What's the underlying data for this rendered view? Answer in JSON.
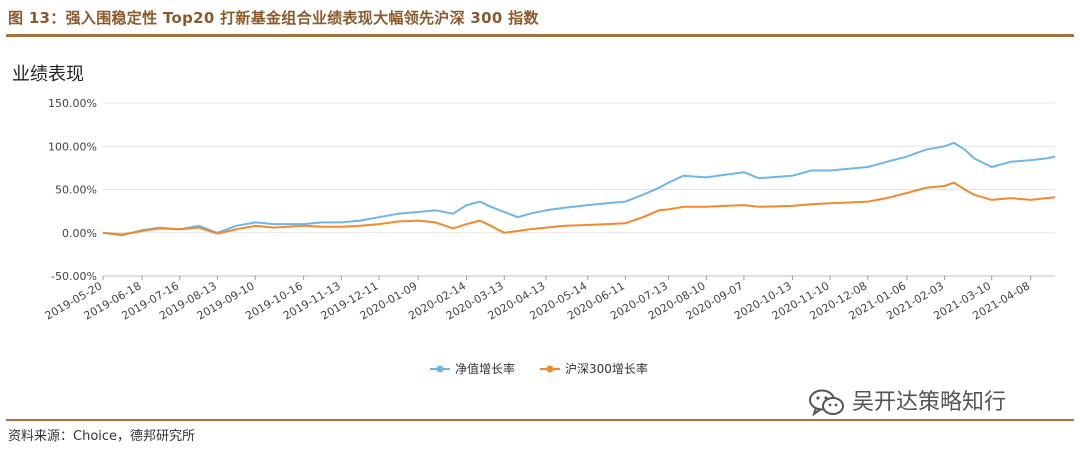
{
  "figure": {
    "title": "图 13：强入围稳定性 Top20 打新基金组合业绩表现大幅领先沪深 300 指数",
    "chart_heading": "业绩表现",
    "source": "资料来源：Choice，德邦研究所",
    "watermark": "吴开达策略知行",
    "watermark_icon": "wechat-icon",
    "rule_color": "#a9733b",
    "title_color": "#8b5a2b"
  },
  "chart_data": {
    "type": "line",
    "title": "业绩表现",
    "xlabel": "",
    "ylabel": "",
    "ylim": [
      -50,
      150
    ],
    "y_ticks": [
      "150.00%",
      "100.00%",
      "50.00%",
      "0.00%",
      "-50.00%"
    ],
    "y_tick_values": [
      150,
      100,
      50,
      0,
      -50
    ],
    "x_start": "2019-05-20",
    "x_end": "2021-04-26",
    "x_ticks": [
      "2019-05-20",
      "2019-06-18",
      "2019-07-16",
      "2019-08-13",
      "2019-09-10",
      "2019-10-16",
      "2019-11-13",
      "2019-12-11",
      "2020-01-09",
      "2020-02-14",
      "2020-03-13",
      "2020-04-13",
      "2020-05-14",
      "2020-06-11",
      "2020-07-13",
      "2020-08-10",
      "2020-09-07",
      "2020-10-13",
      "2020-11-10",
      "2020-12-08",
      "2021-01-06",
      "2021-02-03",
      "2021-03-10",
      "2021-04-08"
    ],
    "grid": true,
    "legend_position": "bottom",
    "series": [
      {
        "name": "净值增长率",
        "color": "#6fb6e6",
        "x": [
          "2019-05-20",
          "2019-06-03",
          "2019-06-18",
          "2019-07-01",
          "2019-07-16",
          "2019-07-30",
          "2019-08-13",
          "2019-08-27",
          "2019-09-10",
          "2019-09-24",
          "2019-10-16",
          "2019-10-30",
          "2019-11-13",
          "2019-11-27",
          "2019-12-11",
          "2019-12-25",
          "2020-01-09",
          "2020-01-22",
          "2020-02-04",
          "2020-02-14",
          "2020-02-24",
          "2020-03-03",
          "2020-03-13",
          "2020-03-23",
          "2020-04-01",
          "2020-04-13",
          "2020-04-27",
          "2020-05-14",
          "2020-05-28",
          "2020-06-11",
          "2020-06-24",
          "2020-07-06",
          "2020-07-13",
          "2020-07-24",
          "2020-08-10",
          "2020-08-24",
          "2020-09-07",
          "2020-09-18",
          "2020-10-13",
          "2020-10-27",
          "2020-11-10",
          "2020-11-24",
          "2020-12-08",
          "2020-12-22",
          "2021-01-06",
          "2021-01-20",
          "2021-02-03",
          "2021-02-10",
          "2021-02-18",
          "2021-02-25",
          "2021-03-10",
          "2021-03-24",
          "2021-04-08",
          "2021-04-20",
          "2021-04-26"
        ],
        "values": [
          0,
          -3,
          3,
          6,
          4,
          8,
          0,
          8,
          12,
          10,
          10,
          12,
          12,
          14,
          18,
          22,
          24,
          26,
          22,
          32,
          36,
          30,
          24,
          18,
          22,
          26,
          29,
          32,
          34,
          36,
          44,
          52,
          58,
          66,
          64,
          67,
          70,
          63,
          66,
          72,
          72,
          74,
          76,
          82,
          88,
          96,
          100,
          104,
          96,
          86,
          76,
          82,
          84,
          86,
          88
        ]
      },
      {
        "name": "沪深300增长率",
        "color": "#f28a2c",
        "x": [
          "2019-05-20",
          "2019-06-03",
          "2019-06-18",
          "2019-07-01",
          "2019-07-16",
          "2019-07-30",
          "2019-08-13",
          "2019-08-27",
          "2019-09-10",
          "2019-09-24",
          "2019-10-16",
          "2019-10-30",
          "2019-11-13",
          "2019-11-27",
          "2019-12-11",
          "2019-12-25",
          "2020-01-09",
          "2020-01-22",
          "2020-02-04",
          "2020-02-14",
          "2020-02-24",
          "2020-03-03",
          "2020-03-13",
          "2020-03-23",
          "2020-04-01",
          "2020-04-13",
          "2020-04-27",
          "2020-05-14",
          "2020-05-28",
          "2020-06-11",
          "2020-06-24",
          "2020-07-06",
          "2020-07-13",
          "2020-07-24",
          "2020-08-10",
          "2020-08-24",
          "2020-09-07",
          "2020-09-18",
          "2020-10-13",
          "2020-10-27",
          "2020-11-10",
          "2020-11-24",
          "2020-12-08",
          "2020-12-22",
          "2021-01-06",
          "2021-01-20",
          "2021-02-03",
          "2021-02-10",
          "2021-02-18",
          "2021-02-25",
          "2021-03-10",
          "2021-03-24",
          "2021-04-08",
          "2021-04-20",
          "2021-04-26"
        ],
        "values": [
          0,
          -2,
          2,
          5,
          4,
          6,
          -1,
          4,
          8,
          6,
          8,
          7,
          7,
          8,
          10,
          13,
          14,
          12,
          5,
          10,
          14,
          8,
          0,
          2,
          4,
          6,
          8,
          9,
          10,
          11,
          18,
          26,
          27,
          30,
          30,
          31,
          32,
          30,
          31,
          33,
          34,
          35,
          36,
          40,
          46,
          52,
          54,
          58,
          50,
          44,
          38,
          40,
          38,
          40,
          41
        ]
      }
    ]
  }
}
